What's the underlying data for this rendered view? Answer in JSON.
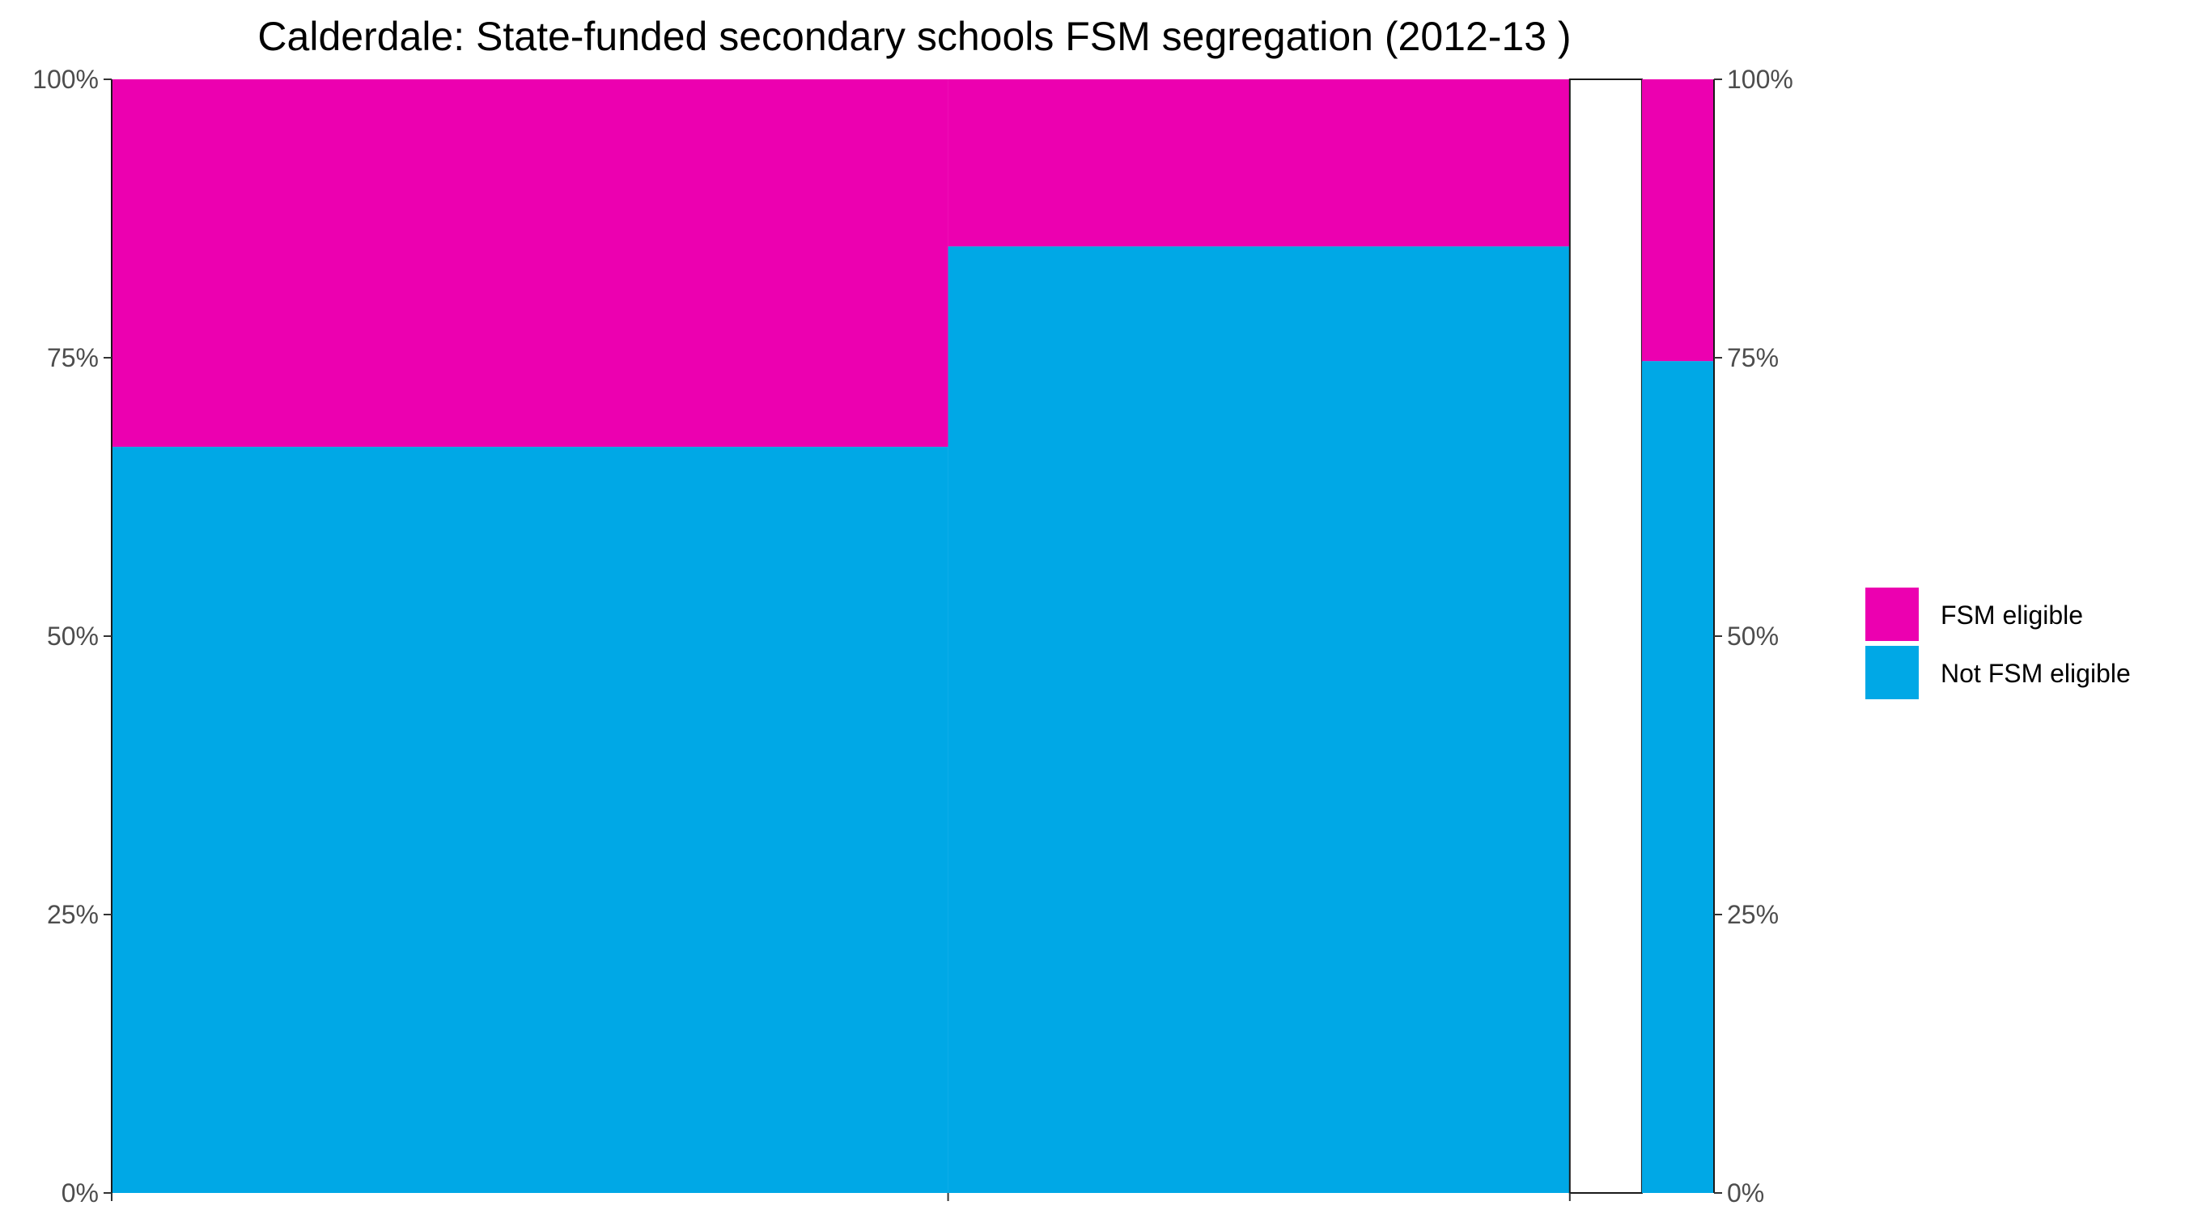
{
  "chart_data": {
    "type": "marimekko",
    "title": "Calderdale: State-funded secondary schools FSM segregation (2012-13 )",
    "xlabel": "",
    "ylabel": "",
    "ylim": [
      0,
      1
    ],
    "x_range": [
      0,
      1
    ],
    "x_ticks": [
      0,
      0.522,
      0.91
    ],
    "y_ticks": [
      {
        "value": 0,
        "label": "0%"
      },
      {
        "value": 0.25,
        "label": "25%"
      },
      {
        "value": 0.5,
        "label": "50%"
      },
      {
        "value": 0.75,
        "label": "75%"
      },
      {
        "value": 1,
        "label": "100%"
      }
    ],
    "groups": [
      {
        "x_start": 0.0,
        "x_end": 0.522,
        "fsm_share": 0.33,
        "not_fsm_share": 0.67
      },
      {
        "x_start": 0.522,
        "x_end": 0.91,
        "fsm_share": 0.15,
        "not_fsm_share": 0.85
      },
      {
        "x_start": 0.91,
        "x_end": 0.955,
        "fsm_share": null,
        "not_fsm_share": null
      },
      {
        "x_start": 0.955,
        "x_end": 1.0,
        "fsm_share": 0.253,
        "not_fsm_share": 0.747
      }
    ],
    "series": [
      {
        "name": "FSM eligible",
        "color": "#ec00b0"
      },
      {
        "name": "Not FSM eligible",
        "color": "#00a8e6"
      }
    ],
    "legend_position": "right",
    "grid": false,
    "secondary_y_axis": true
  }
}
